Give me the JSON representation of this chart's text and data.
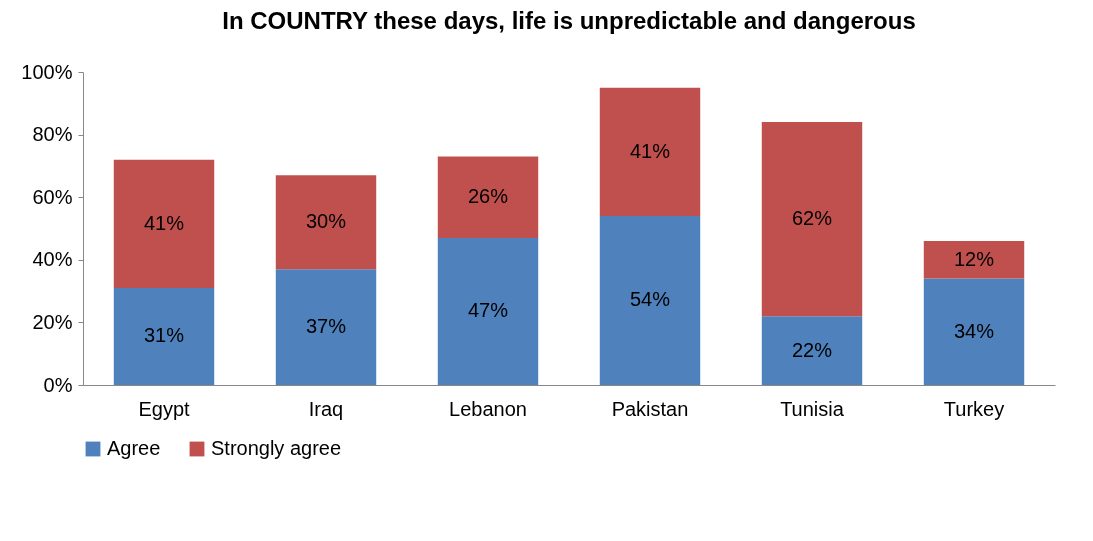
{
  "chart_data": {
    "type": "bar",
    "title": "In COUNTRY these days, life is unpredictable and dangerous",
    "stacked": true,
    "categories": [
      "Egypt",
      "Iraq",
      "Lebanon",
      "Pakistan",
      "Tunisia",
      "Turkey"
    ],
    "series": [
      {
        "name": "Agree",
        "color": "#4f81bd",
        "values": [
          31,
          37,
          47,
          54,
          22,
          34
        ],
        "value_labels": [
          "31%",
          "37%",
          "47%",
          "54%",
          "22%",
          "34%"
        ]
      },
      {
        "name": "Strongly agree",
        "color": "#c0504d",
        "values": [
          41,
          30,
          26,
          41,
          62,
          12
        ],
        "value_labels": [
          "41%",
          "30%",
          "26%",
          "41%",
          "62%",
          "12%"
        ]
      }
    ],
    "ylim": [
      0,
      100
    ],
    "yticks": [
      {
        "value": 0,
        "label": "0%"
      },
      {
        "value": 20,
        "label": "20%"
      },
      {
        "value": 40,
        "label": "40%"
      },
      {
        "value": 60,
        "label": "60%"
      },
      {
        "value": 80,
        "label": "80%"
      },
      {
        "value": 100,
        "label": "100%"
      }
    ],
    "grid": false,
    "legend": "bottom"
  }
}
